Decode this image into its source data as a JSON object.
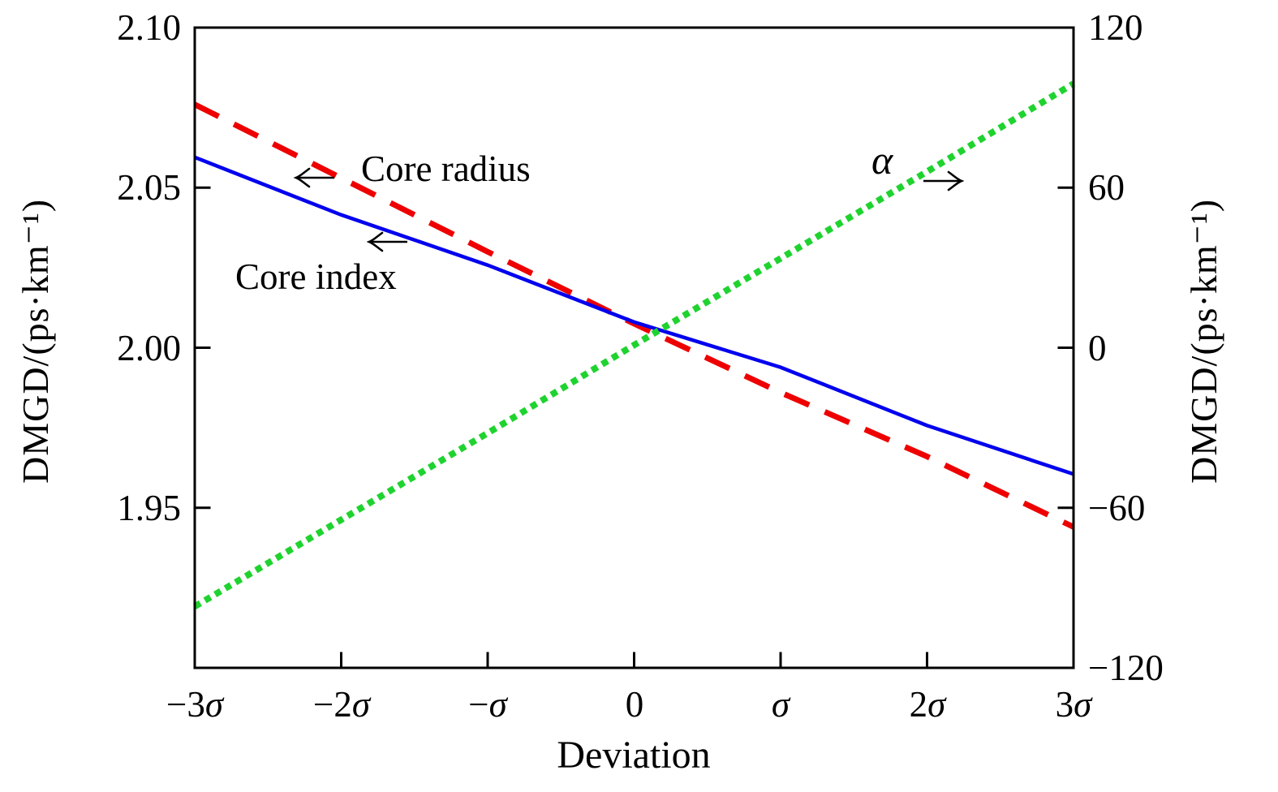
{
  "chart_data": {
    "type": "line",
    "title": "",
    "xlabel": "Deviation",
    "x_tick_labels": [
      "−3σ",
      "−2σ",
      "−σ",
      "0",
      "σ",
      "2σ",
      "3σ"
    ],
    "x_values_sigma": [
      -3,
      -2,
      -1,
      0,
      1,
      2,
      3
    ],
    "grid": false,
    "legend": "none (inline text annotations with arrows)",
    "left_axis": {
      "label": "DMGD/(ps·km⁻¹)",
      "lim": [
        1.9,
        2.1
      ],
      "ticks": [
        2.1,
        2.05,
        2.0,
        1.95
      ],
      "tick_labels": [
        "2.10",
        "2.05",
        "2.00",
        "1.95"
      ]
    },
    "right_axis": {
      "label": "DMGD/(ps·km⁻¹)",
      "lim": [
        -120,
        120
      ],
      "ticks": [
        120,
        60,
        0,
        -60,
        -120
      ],
      "tick_labels": [
        "120",
        "60",
        "0",
        "−60",
        "−120"
      ]
    },
    "series": [
      {
        "name": "Core radius",
        "axis": "left",
        "color": "#ee0000",
        "style": "dashed",
        "values": [
          2.076,
          2.053,
          2.03,
          2.0075,
          1.986,
          1.966,
          1.944
        ]
      },
      {
        "name": "Core index",
        "axis": "left",
        "color": "#0000ee",
        "style": "solid",
        "values": [
          2.0595,
          2.0415,
          2.0258,
          2.008,
          1.9939,
          1.9757,
          1.9605
        ]
      },
      {
        "name": "α",
        "axis": "right",
        "color": "#1fd32f",
        "style": "dotted",
        "values": [
          -97,
          -64.5,
          -32,
          1,
          33.5,
          66,
          99
        ]
      }
    ],
    "annotations": [
      {
        "text": "Core radius",
        "arrow": "left"
      },
      {
        "text": "Core index",
        "arrow": "left"
      },
      {
        "text": "α",
        "arrow": "right"
      }
    ]
  },
  "layout_colors": {
    "axes": "#000000",
    "background": "#ffffff"
  }
}
